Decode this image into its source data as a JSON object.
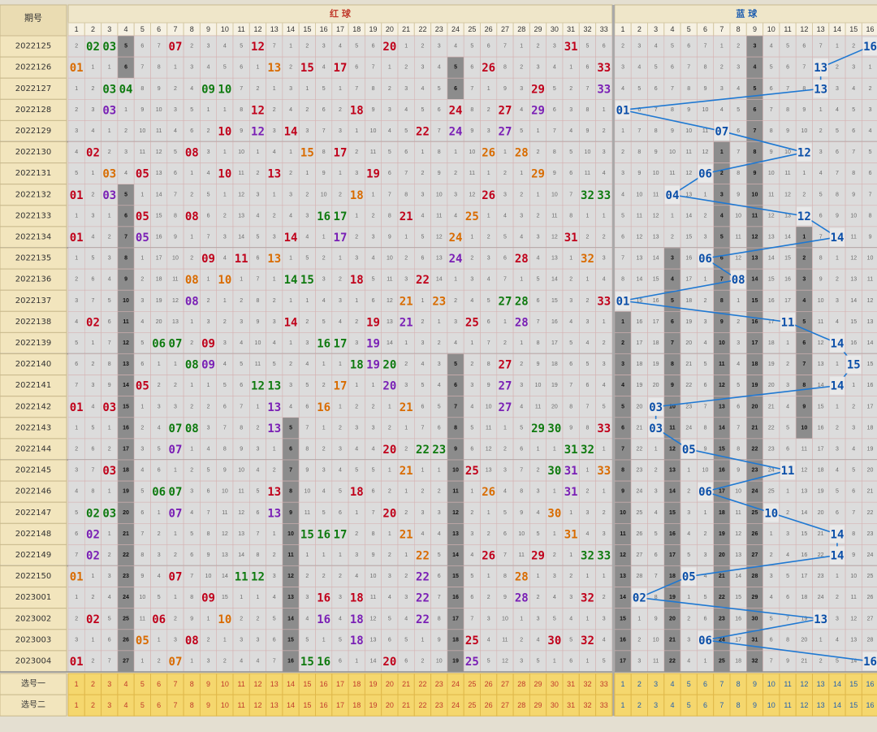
{
  "header": {
    "issue_label": "期号",
    "red_title": "红 球",
    "blue_title": "蓝 球",
    "pick_one_label": "选号一",
    "pick_two_label": "选号二"
  },
  "colors": {
    "red_title": "#c0392b",
    "blue_title": "#1f5fb0",
    "hit_red": "#c0001a",
    "hit_orange": "#d96b00",
    "hit_purple": "#7a1fb5",
    "hit_green": "#0f7a0f",
    "hit_blue": "#0a4ea8",
    "miss_text": "#6b6b6b",
    "streak_bg": "#8c8c8c",
    "pick_row_bg": "#f5d76e",
    "line_color": "#1e78d2"
  },
  "periods": [
    {
      "id": "2022125",
      "red": [
        2,
        3,
        7,
        12,
        20,
        31
      ],
      "blue": 16
    },
    {
      "id": "2022126",
      "red": [
        1,
        13,
        15,
        17,
        26,
        33
      ],
      "blue": 13
    },
    {
      "id": "2022127",
      "red": [
        3,
        4,
        9,
        10,
        29,
        33
      ],
      "blue": 13
    },
    {
      "id": "2022128",
      "red": [
        3,
        12,
        18,
        24,
        27,
        29
      ],
      "blue": 1
    },
    {
      "id": "2022129",
      "red": [
        10,
        12,
        14,
        22,
        24,
        27
      ],
      "blue": 7
    },
    {
      "id": "2022130",
      "red": [
        2,
        8,
        15,
        17,
        26,
        28
      ],
      "blue": 12
    },
    {
      "id": "2022131",
      "red": [
        3,
        5,
        10,
        13,
        19,
        29
      ],
      "blue": 6
    },
    {
      "id": "2022132",
      "red": [
        1,
        3,
        18,
        26,
        32,
        33
      ],
      "blue": 4
    },
    {
      "id": "2022133",
      "red": [
        5,
        8,
        16,
        17,
        21,
        25
      ],
      "blue": 12
    },
    {
      "id": "2022134",
      "red": [
        1,
        5,
        14,
        17,
        24,
        31
      ],
      "blue": 14
    },
    {
      "id": "2022135",
      "red": [
        9,
        11,
        13,
        24,
        28,
        32
      ],
      "blue": 6
    },
    {
      "id": "2022136",
      "red": [
        8,
        10,
        14,
        15,
        18,
        22
      ],
      "blue": 8
    },
    {
      "id": "2022137",
      "red": [
        8,
        21,
        23,
        27,
        28,
        33
      ],
      "blue": 1
    },
    {
      "id": "2022138",
      "red": [
        2,
        14,
        19,
        21,
        25,
        28
      ],
      "blue": 11
    },
    {
      "id": "2022139",
      "red": [
        6,
        7,
        9,
        16,
        17,
        19
      ],
      "blue": 14
    },
    {
      "id": "2022140",
      "red": [
        8,
        9,
        18,
        19,
        20,
        27
      ],
      "blue": 15
    },
    {
      "id": "2022141",
      "red": [
        5,
        12,
        13,
        17,
        20,
        27
      ],
      "blue": 14
    },
    {
      "id": "2022142",
      "red": [
        1,
        3,
        13,
        16,
        21,
        27
      ],
      "blue": 3
    },
    {
      "id": "2022143",
      "red": [
        7,
        8,
        13,
        29,
        30,
        33
      ],
      "blue": 3
    },
    {
      "id": "2022144",
      "red": [
        7,
        20,
        22,
        23,
        31,
        32
      ],
      "blue": 5
    },
    {
      "id": "2022145",
      "red": [
        3,
        21,
        25,
        30,
        31,
        33
      ],
      "blue": 11
    },
    {
      "id": "2022146",
      "red": [
        6,
        7,
        13,
        18,
        26,
        31
      ],
      "blue": 6
    },
    {
      "id": "2022147",
      "red": [
        2,
        3,
        7,
        13,
        20,
        30
      ],
      "blue": 10
    },
    {
      "id": "2022148",
      "red": [
        2,
        15,
        16,
        17,
        21,
        31
      ],
      "blue": 14
    },
    {
      "id": "2022149",
      "red": [
        2,
        22,
        26,
        29,
        32,
        33
      ],
      "blue": 14
    },
    {
      "id": "2022150",
      "red": [
        1,
        7,
        11,
        12,
        22,
        28
      ],
      "blue": 5
    },
    {
      "id": "2023001",
      "red": [
        9,
        16,
        18,
        22,
        28,
        32
      ],
      "blue": 2
    },
    {
      "id": "2023002",
      "red": [
        2,
        6,
        10,
        16,
        18,
        22
      ],
      "blue": 13
    },
    {
      "id": "2023003",
      "red": [
        5,
        8,
        18,
        25,
        30,
        32
      ],
      "blue": 6
    },
    {
      "id": "2023004",
      "red": [
        1,
        7,
        15,
        16,
        20,
        25
      ],
      "blue": 16
    }
  ],
  "red_numbers": [
    "1",
    "2",
    "3",
    "4",
    "5",
    "6",
    "7",
    "8",
    "9",
    "10",
    "11",
    "12",
    "13",
    "14",
    "15",
    "16",
    "17",
    "18",
    "19",
    "20",
    "21",
    "22",
    "23",
    "24",
    "25",
    "26",
    "27",
    "28",
    "29",
    "30",
    "31",
    "32",
    "33"
  ],
  "blue_numbers": [
    "1",
    "2",
    "3",
    "4",
    "5",
    "6",
    "7",
    "8",
    "9",
    "10",
    "11",
    "12",
    "13",
    "14",
    "15",
    "16"
  ]
}
